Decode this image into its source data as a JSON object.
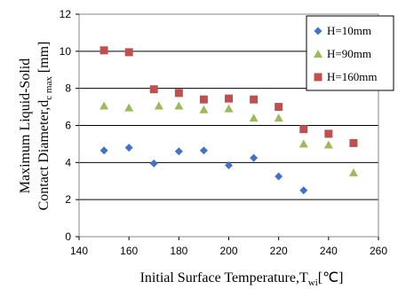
{
  "chart_data": {
    "type": "scatter",
    "xlabel": "Initial Surface Temperature,T",
    "xlabel_sub": "wi",
    "xlabel_unit": "[℃]",
    "ylabel_line1": "Maximum Liquid-Solid",
    "ylabel_line2": "Contact Diameter,d",
    "ylabel_sub": "c  max",
    "ylabel_unit": " [mm]",
    "xlim": [
      140,
      260
    ],
    "ylim": [
      0,
      12
    ],
    "xticks": [
      "140",
      "160",
      "180",
      "200",
      "220",
      "240",
      "260"
    ],
    "yticks": [
      "0",
      "2",
      "4",
      "6",
      "8",
      "10",
      "12"
    ],
    "grid": "horizontal",
    "legend_position": "top-right",
    "series": [
      {
        "name": "H=10mm",
        "marker": "diamond",
        "color": "#4472C4",
        "points": [
          [
            150,
            4.65
          ],
          [
            160,
            4.8
          ],
          [
            170,
            3.95
          ],
          [
            180,
            4.6
          ],
          [
            190,
            4.65
          ],
          [
            200,
            3.85
          ],
          [
            210,
            4.25
          ],
          [
            220,
            3.25
          ],
          [
            230,
            2.5
          ]
        ]
      },
      {
        "name": "H=90mm",
        "marker": "triangle",
        "color": "#9BBB59",
        "points": [
          [
            150,
            7.05
          ],
          [
            160,
            6.95
          ],
          [
            172,
            7.05
          ],
          [
            180,
            7.05
          ],
          [
            190,
            6.85
          ],
          [
            200,
            6.9
          ],
          [
            210,
            6.4
          ],
          [
            220,
            6.4
          ],
          [
            230,
            5.0
          ],
          [
            240,
            4.95
          ],
          [
            250,
            3.45
          ]
        ]
      },
      {
        "name": "H=160mm",
        "marker": "square",
        "color": "#C0504D",
        "points": [
          [
            150,
            10.05
          ],
          [
            160,
            9.95
          ],
          [
            170,
            7.95
          ],
          [
            180,
            7.75
          ],
          [
            190,
            7.4
          ],
          [
            200,
            7.45
          ],
          [
            210,
            7.4
          ],
          [
            220,
            7.0
          ],
          [
            230,
            5.8
          ],
          [
            240,
            5.55
          ],
          [
            250,
            5.05
          ]
        ]
      }
    ]
  }
}
